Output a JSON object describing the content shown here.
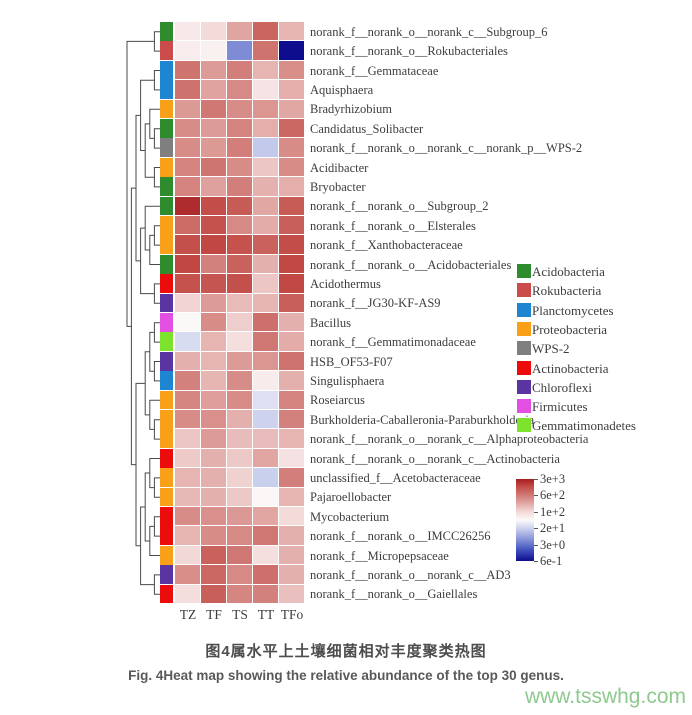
{
  "figure": {
    "caption_zh": "图4属水平上土壤细菌相对丰度聚类热图",
    "caption_en": "Fig. 4Heat map showing the relative abundance of the top 30 genus.",
    "watermark": "www.tsswhg.com"
  },
  "chart_data": {
    "type": "heatmap",
    "title": "",
    "xlabel": "",
    "ylabel": "",
    "scale": "log",
    "value_range": [
      0.6,
      3000
    ],
    "columns": [
      "TZ",
      "TF",
      "TS",
      "TT",
      "TFo"
    ],
    "rows": [
      {
        "label": "norank_f__norank_o__norank_c__Subgroup_6",
        "phylum": "Acidobacteria",
        "values": [
          65,
          95,
          250,
          850,
          190
        ]
      },
      {
        "label": "norank_f__norank_o__Rokubacteriales",
        "phylum": "Rokubacteria",
        "values": [
          60,
          55,
          5,
          650,
          0.6
        ]
      },
      {
        "label": "norank_f__Gemmataceae",
        "phylum": "Planctomycetes",
        "values": [
          650,
          300,
          520,
          190,
          380
        ]
      },
      {
        "label": "Aquisphaera",
        "phylum": "Planctomycetes",
        "values": [
          660,
          260,
          420,
          75,
          210
        ]
      },
      {
        "label": "Bradyrhizobium",
        "phylum": "Proteobacteria",
        "values": [
          310,
          580,
          400,
          330,
          240
        ]
      },
      {
        "label": "Candidatus_Solibacter",
        "phylum": "Acidobacteria",
        "values": [
          400,
          300,
          480,
          210,
          800
        ]
      },
      {
        "label": "norank_f__norank_o__norank_c__norank_p__WPS-2",
        "phylum": "WPS-2",
        "values": [
          400,
          310,
          520,
          15,
          400
        ]
      },
      {
        "label": "Acidibacter",
        "phylum": "Proteobacteria",
        "values": [
          480,
          620,
          400,
          140,
          400
        ]
      },
      {
        "label": "Bryobacter",
        "phylum": "Acidobacteria",
        "values": [
          480,
          270,
          520,
          200,
          210
        ]
      },
      {
        "label": "norank_f__norank_o__Subgroup_2",
        "phylum": "Acidobacteria",
        "values": [
          2300,
          1300,
          1000,
          240,
          1000
        ]
      },
      {
        "label": "norank_f__norank_o__Elsterales",
        "phylum": "Proteobacteria",
        "values": [
          760,
          1200,
          420,
          220,
          950
        ]
      },
      {
        "label": "norank_f__Xanthobacteraceae",
        "phylum": "Proteobacteria",
        "values": [
          1250,
          1500,
          1200,
          900,
          1300
        ]
      },
      {
        "label": "norank_f__norank_o__Acidobacteriales",
        "phylum": "Acidobacteria",
        "values": [
          1500,
          500,
          900,
          205,
          1450
        ]
      },
      {
        "label": "Acidothermus",
        "phylum": "Actinobacteria",
        "values": [
          1200,
          1150,
          1250,
          140,
          1450
        ]
      },
      {
        "label": "norank_f__JG30-KF-AS9",
        "phylum": "Chloroflexi",
        "values": [
          110,
          300,
          170,
          190,
          950
        ]
      },
      {
        "label": "Bacillus",
        "phylum": "Firmicutes",
        "values": [
          45,
          400,
          120,
          700,
          205
        ]
      },
      {
        "label": "norank_f__Gemmatimonadaceae",
        "phylum": "Gemmatimonadetes",
        "values": [
          22,
          190,
          85,
          600,
          220
        ]
      },
      {
        "label": "HSB_OF53-F07",
        "phylum": "Chloroflexi",
        "values": [
          205,
          190,
          300,
          330,
          650
        ]
      },
      {
        "label": "Singulisphaera",
        "phylum": "Planctomycetes",
        "values": [
          500,
          185,
          400,
          62,
          205
        ]
      },
      {
        "label": "Roseiarcus",
        "phylum": "Proteobacteria",
        "values": [
          450,
          280,
          400,
          24,
          480
        ]
      },
      {
        "label": "Burkholderia-Caballeronia-Paraburkholderia",
        "phylum": "Proteobacteria",
        "values": [
          400,
          370,
          205,
          18,
          500
        ]
      },
      {
        "label": "norank_f__norank_o__norank_c__Alphaproteobacteria",
        "phylum": "Proteobacteria",
        "values": [
          140,
          300,
          165,
          165,
          190
        ]
      },
      {
        "label": "norank_f__norank_o__norank_c__Actinobacteria",
        "phylum": "Actinobacteria",
        "values": [
          130,
          205,
          135,
          245,
          80
        ]
      },
      {
        "label": "unclassified_f__Acetobacteraceae",
        "phylum": "Proteobacteria",
        "values": [
          190,
          205,
          115,
          17,
          520
        ]
      },
      {
        "label": "Pajaroellobacter",
        "phylum": "Proteobacteria",
        "values": [
          175,
          205,
          135,
          46,
          190
        ]
      },
      {
        "label": "Mycobacterium",
        "phylum": "Actinobacteria",
        "values": [
          400,
          370,
          320,
          245,
          95
        ]
      },
      {
        "label": "norank_f__norank_o__IMCC26256",
        "phylum": "Actinobacteria",
        "values": [
          190,
          400,
          420,
          600,
          205
        ]
      },
      {
        "label": "norank_f__Micropepsaceae",
        "phylum": "Proteobacteria",
        "values": [
          100,
          900,
          600,
          85,
          205
        ]
      },
      {
        "label": "norank_f__norank_o__norank_c__AD3",
        "phylum": "Chloroflexi",
        "values": [
          380,
          800,
          420,
          700,
          205
        ]
      },
      {
        "label": "norank_f__norank_o__Gaiellales",
        "phylum": "Actinobacteria",
        "values": [
          88,
          950,
          450,
          500,
          155
        ]
      }
    ],
    "phyla_legend": [
      {
        "name": "Acidobacteria",
        "color": "#2e8b2e"
      },
      {
        "name": "Rokubacteria",
        "color": "#cc4c4c"
      },
      {
        "name": "Planctomycetes",
        "color": "#1e86d1"
      },
      {
        "name": "Proteobacteria",
        "color": "#f9a019"
      },
      {
        "name": "WPS-2",
        "color": "#7f7f7f"
      },
      {
        "name": "Actinobacteria",
        "color": "#ec0c0c"
      },
      {
        "name": "Chloroflexi",
        "color": "#5a35a2"
      },
      {
        "name": "Firmicutes",
        "color": "#e24fe2"
      },
      {
        "name": "Gemmatimonadetes",
        "color": "#7ce22b"
      }
    ],
    "colorbar": {
      "tick_labels": [
        "3e+3",
        "6e+2",
        "1e+2",
        "2e+1",
        "3e+0",
        "6e-1"
      ],
      "tick_values": [
        3000,
        600,
        100,
        20,
        3,
        0.6
      ]
    },
    "colormap_stops": [
      [
        0.0,
        [
          13,
          13,
          142
        ]
      ],
      [
        0.13,
        [
          63,
          80,
          189
        ]
      ],
      [
        0.27,
        [
          138,
          150,
          217
        ]
      ],
      [
        0.4,
        [
          205,
          211,
          238
        ]
      ],
      [
        0.5,
        [
          252,
          250,
          250
        ]
      ],
      [
        0.6,
        [
          242,
          217,
          216
        ]
      ],
      [
        0.71,
        [
          224,
          164,
          160
        ]
      ],
      [
        0.82,
        [
          206,
          115,
          110
        ]
      ],
      [
        0.92,
        [
          193,
          70,
          65
        ]
      ],
      [
        1.0,
        [
          164,
          28,
          34
        ]
      ]
    ],
    "row_dendrogram": [
      [
        1,
        2
      ],
      [
        [
          [
            [
              3,
              4
            ],
            [
              [
                5,
                [
                  6,
                  7
                ]
              ],
              [
                8,
                9
              ]
            ]
          ],
          [
            [
              10,
              [
                [
                  11,
                  12
                ],
                13
              ]
            ],
            [
              14,
              15
            ]
          ]
        ],
        [
          [
            [
              [
                16,
                17
              ],
              [
                18,
                19
              ]
            ],
            [
              20,
              [
                21,
                22
              ]
            ]
          ],
          [
            [
              [
                23,
                [
                  24,
                  25
                ]
              ],
              [
                [
                  26,
                  27
                ],
                28
              ]
            ],
            [
              29,
              30
            ]
          ]
        ]
      ]
    ]
  }
}
